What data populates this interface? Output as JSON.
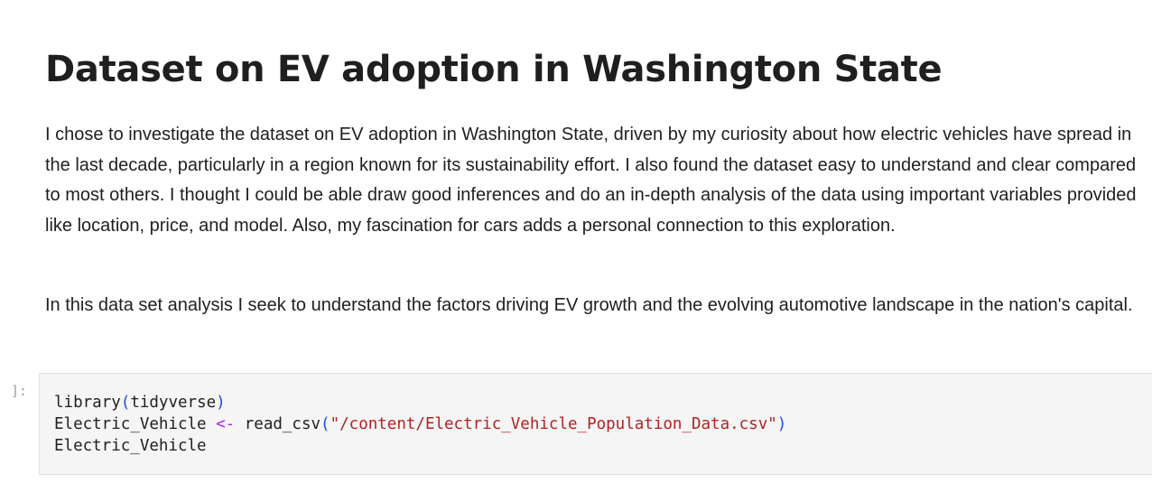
{
  "markdown_cell": {
    "title": "Dataset on EV adoption in Washington State",
    "paragraphs": [
      "I chose to investigate the dataset on EV adoption in Washington State, driven by my curiosity about how electric vehicles have spread in the last decade, particularly in a region known for its sustainability effort. I also found the dataset easy to understand and clear compared to most others. I thought I could be able draw good inferences and do an in-depth analysis of the data using important variables provided like location, price, and model. Also, my fascination for cars adds a personal connection to this exploration.",
      "In this data set analysis I seek to understand the factors driving EV growth and the evolving automotive landscape in the nation's capital."
    ]
  },
  "code_cell": {
    "prompt": "]:",
    "lines": {
      "line1": {
        "func": "library",
        "open": "(",
        "arg": "tidyverse",
        "close": ")"
      },
      "line2": {
        "var": "Electric_Vehicle",
        "op": "<-",
        "func": "read_csv",
        "open": "(",
        "string": "\"/content/Electric_Vehicle_Population_Data.csv\"",
        "close": ")"
      },
      "line3": {
        "var": "Electric_Vehicle"
      }
    }
  },
  "colors": {
    "text": "#1f1f1f",
    "code_background": "#f5f5f5",
    "paren": "#1a4fd8",
    "assign_operator": "#a626ff",
    "string": "#b22222",
    "prompt": "#9e9e9e"
  }
}
